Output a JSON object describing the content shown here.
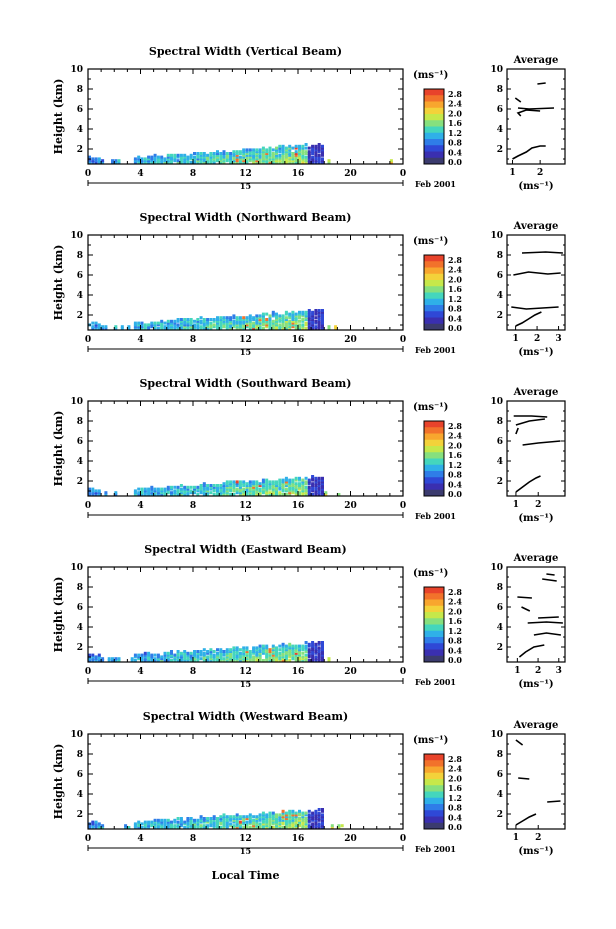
{
  "figure": {
    "date_label": "Feb 2001",
    "xlabel": "Local Time",
    "day_label": "15"
  },
  "colorbar": {
    "unit": "(ms⁻¹)",
    "ticks": [
      "2.8",
      "2.4",
      "2.0",
      "1.6",
      "1.2",
      "0.8",
      "0.4",
      "0.0"
    ],
    "colors": [
      "#e8432b",
      "#f2722b",
      "#f8a62e",
      "#f3d23a",
      "#c6e84a",
      "#86e07e",
      "#44d6bd",
      "#2fb0e8",
      "#2f7de8",
      "#2f48d6",
      "#3a2fb0",
      "#3b3b6e"
    ]
  },
  "chart_data": [
    {
      "type": "heatmap",
      "title": "Spectral Width (Vertical Beam)",
      "ylabel": "Height (km)",
      "xlim": [
        0,
        24
      ],
      "ylim": [
        0.5,
        10
      ],
      "xticks": [
        "0",
        "4",
        "8",
        "12",
        "16",
        "20",
        "0"
      ],
      "yticks": [
        "2",
        "4",
        "6",
        "8",
        "10"
      ],
      "profile": {
        "title": "Average",
        "xlabel": "(ms⁻¹)",
        "xlim": [
          0.8,
          2.9
        ],
        "xticks": [
          1,
          2
        ],
        "yticks": [
          2,
          4,
          6,
          8,
          10
        ],
        "segments": [
          [
            [
              1.0,
              1.0
            ],
            [
              1.2,
              1.3
            ],
            [
              1.5,
              1.7
            ],
            [
              1.7,
              2.1
            ],
            [
              2.0,
              2.3
            ],
            [
              2.2,
              2.3
            ]
          ],
          [
            [
              1.3,
              5.3
            ],
            [
              1.2,
              5.6
            ],
            [
              1.5,
              5.9
            ],
            [
              2.0,
              5.8
            ]
          ],
          [
            [
              1.2,
              6.1
            ],
            [
              1.6,
              6.0
            ],
            [
              2.5,
              6.1
            ]
          ],
          [
            [
              1.1,
              7.1
            ],
            [
              1.3,
              6.7
            ]
          ],
          [
            [
              1.9,
              8.5
            ],
            [
              2.2,
              8.6
            ]
          ]
        ]
      }
    },
    {
      "type": "heatmap",
      "title": "Spectral Width (Northward Beam)",
      "ylabel": "Height (km)",
      "xlim": [
        0,
        24
      ],
      "ylim": [
        0.5,
        10
      ],
      "xticks": [
        "0",
        "4",
        "8",
        "12",
        "16",
        "20",
        "0"
      ],
      "yticks": [
        "2",
        "4",
        "6",
        "8",
        "10"
      ],
      "profile": {
        "title": "Average",
        "xlabel": "(ms⁻¹)",
        "xlim": [
          0.6,
          3.3
        ],
        "xticks": [
          1,
          2,
          3
        ],
        "yticks": [
          2,
          4,
          6,
          8,
          10
        ],
        "segments": [
          [
            [
              1.0,
              0.9
            ],
            [
              1.3,
              1.2
            ],
            [
              1.6,
              1.6
            ],
            [
              1.9,
              2.0
            ],
            [
              2.2,
              2.3
            ]
          ],
          [
            [
              0.8,
              2.8
            ],
            [
              1.5,
              2.6
            ],
            [
              3.0,
              2.8
            ]
          ],
          [
            [
              0.9,
              6.0
            ],
            [
              1.6,
              6.3
            ],
            [
              2.5,
              6.1
            ],
            [
              3.1,
              6.2
            ]
          ],
          [
            [
              1.3,
              8.2
            ],
            [
              2.4,
              8.3
            ],
            [
              3.2,
              8.2
            ]
          ]
        ]
      }
    },
    {
      "type": "heatmap",
      "title": "Spectral Width (Southward Beam)",
      "ylabel": "Height (km)",
      "xlim": [
        0,
        24
      ],
      "ylim": [
        0.5,
        10
      ],
      "xticks": [
        "0",
        "4",
        "8",
        "12",
        "16",
        "20",
        "0"
      ],
      "yticks": [
        "2",
        "4",
        "6",
        "8",
        "10"
      ],
      "profile": {
        "title": "Average",
        "xlabel": "(ms⁻¹)",
        "xlim": [
          0.6,
          3.2
        ],
        "xticks": [
          1,
          2
        ],
        "yticks": [
          2,
          4,
          6,
          8,
          10
        ],
        "segments": [
          [
            [
              1.0,
              0.9
            ],
            [
              1.3,
              1.4
            ],
            [
              1.6,
              1.9
            ],
            [
              1.9,
              2.3
            ],
            [
              2.1,
              2.5
            ]
          ],
          [
            [
              1.3,
              5.6
            ],
            [
              2.0,
              5.8
            ],
            [
              3.0,
              6.0
            ]
          ],
          [
            [
              1.0,
              6.7
            ],
            [
              1.1,
              7.3
            ]
          ],
          [
            [
              1.0,
              7.6
            ],
            [
              1.6,
              8.0
            ],
            [
              2.3,
              8.2
            ]
          ],
          [
            [
              0.9,
              8.5
            ],
            [
              1.7,
              8.5
            ],
            [
              2.4,
              8.4
            ]
          ]
        ]
      }
    },
    {
      "type": "heatmap",
      "title": "Spectral Width (Eastward Beam)",
      "ylabel": "Height (km)",
      "xlim": [
        0,
        24
      ],
      "ylim": [
        0.5,
        10
      ],
      "xticks": [
        "0",
        "4",
        "8",
        "12",
        "16",
        "20",
        "0"
      ],
      "yticks": [
        "2",
        "4",
        "6",
        "8",
        "10"
      ],
      "profile": {
        "title": "Average",
        "xlabel": "(ms⁻¹)",
        "xlim": [
          0.5,
          3.3
        ],
        "xticks": [
          1,
          2,
          3
        ],
        "yticks": [
          2,
          4,
          6,
          8,
          10
        ],
        "segments": [
          [
            [
              1.1,
              1.0
            ],
            [
              1.4,
              1.5
            ],
            [
              1.8,
              2.0
            ],
            [
              2.3,
              2.2
            ]
          ],
          [
            [
              1.8,
              3.2
            ],
            [
              2.4,
              3.4
            ],
            [
              3.1,
              3.2
            ]
          ],
          [
            [
              1.5,
              4.4
            ],
            [
              2.4,
              4.5
            ],
            [
              3.2,
              4.4
            ]
          ],
          [
            [
              2.0,
              4.9
            ],
            [
              3.0,
              5.0
            ]
          ],
          [
            [
              1.2,
              6.0
            ],
            [
              1.6,
              5.6
            ]
          ],
          [
            [
              1.0,
              7.0
            ],
            [
              1.7,
              6.9
            ]
          ],
          [
            [
              2.2,
              8.8
            ],
            [
              2.9,
              8.6
            ]
          ],
          [
            [
              2.4,
              9.3
            ],
            [
              2.8,
              9.2
            ]
          ]
        ]
      }
    },
    {
      "type": "heatmap",
      "title": "Spectral Width (Westward Beam)",
      "ylabel": "Height (km)",
      "xlim": [
        0,
        24
      ],
      "ylim": [
        0.5,
        10
      ],
      "xticks": [
        "0",
        "4",
        "8",
        "12",
        "16",
        "20",
        "0"
      ],
      "yticks": [
        "2",
        "4",
        "6",
        "8",
        "10"
      ],
      "profile": {
        "title": "Average",
        "xlabel": "(ms⁻¹)",
        "xlim": [
          0.6,
          3.2
        ],
        "xticks": [
          1,
          2
        ],
        "yticks": [
          2,
          4,
          6,
          8,
          10
        ],
        "segments": [
          [
            [
              1.0,
              0.9
            ],
            [
              1.3,
              1.3
            ],
            [
              1.6,
              1.7
            ],
            [
              1.9,
              2.0
            ]
          ],
          [
            [
              2.4,
              3.2
            ],
            [
              3.0,
              3.3
            ]
          ],
          [
            [
              1.1,
              5.6
            ],
            [
              1.6,
              5.5
            ]
          ],
          [
            [
              1.0,
              9.4
            ],
            [
              1.3,
              8.9
            ]
          ]
        ]
      }
    }
  ]
}
